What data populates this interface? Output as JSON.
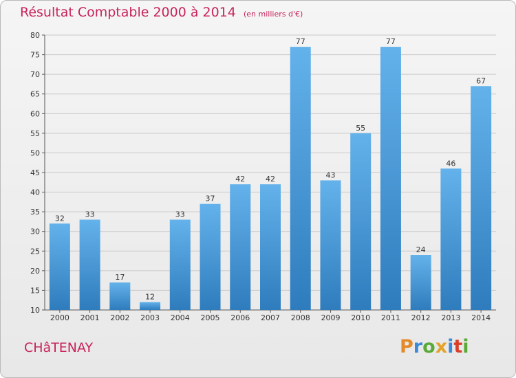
{
  "header": {
    "title": "Résultat Comptable 2000 à 2014",
    "subtitle": "(en milliers d'€)"
  },
  "footer": {
    "commune": "CHâTENAY",
    "logo_letters": [
      {
        "ch": "P",
        "color": "#e48a2a"
      },
      {
        "ch": "r",
        "color": "#3b8ad8"
      },
      {
        "ch": "o",
        "color": "#5aaa3a"
      },
      {
        "ch": "x",
        "color": "#e4a22a"
      },
      {
        "ch": "i",
        "color": "#3b8ad8"
      },
      {
        "ch": "t",
        "color": "#d8402a"
      },
      {
        "ch": "i",
        "color": "#5aaa3a"
      }
    ]
  },
  "chart_data": {
    "type": "bar",
    "title": "Résultat Comptable 2000 à 2014",
    "subtitle": "(en milliers d'€)",
    "categories": [
      "2000",
      "2001",
      "2002",
      "2003",
      "2004",
      "2005",
      "2006",
      "2007",
      "2008",
      "2009",
      "2010",
      "2011",
      "2012",
      "2013",
      "2014"
    ],
    "values": [
      32,
      33,
      17,
      12,
      33,
      37,
      42,
      42,
      77,
      43,
      55,
      77,
      24,
      46,
      67
    ],
    "ylim": [
      10,
      80
    ],
    "yticks": [
      10,
      15,
      20,
      25,
      30,
      35,
      40,
      45,
      50,
      55,
      60,
      65,
      70,
      75,
      80
    ],
    "grid": true,
    "colors": {
      "bar_top": "#64b2eb",
      "bar_bottom": "#2f7cbd",
      "grid": "#c8c8c8",
      "title": "#c8245a"
    }
  }
}
